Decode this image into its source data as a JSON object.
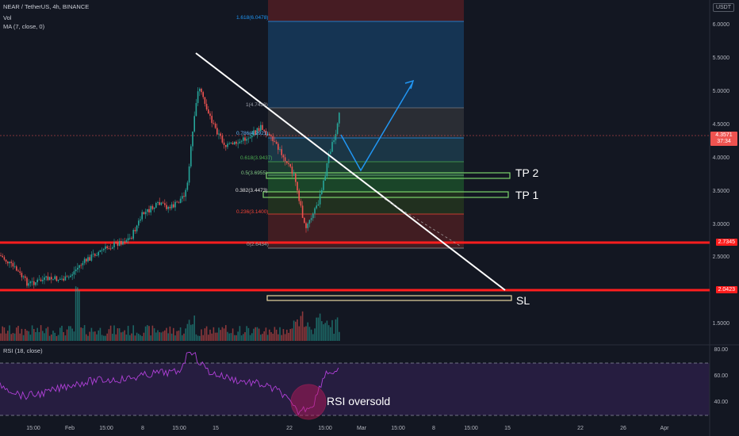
{
  "header": {
    "symbol_line": "NEAR / TetherUS, 4h, BINANCE",
    "vol_label": "Vol",
    "ma_label": "MA (7, close, 0)"
  },
  "currency_label": "USDT",
  "price_axis": [
    "6.0000",
    "5.5000",
    "5.0000",
    "4.5000",
    "4.0000",
    "3.5000",
    "3.0000",
    "2.5000",
    "1.5000"
  ],
  "price_badges": {
    "current": "4.3571",
    "countdown": "37:34",
    "level_upper": "2.7345",
    "level_lower": "2.0423"
  },
  "fib_levels": [
    "1.618(6.0478)",
    "1(4.7433)",
    "0.786(4.2921)",
    "0.618(3.9437)",
    "0.5(3.6955)",
    "0.382(3.4473)",
    "0.236(3.1400)",
    "0(2.6434)"
  ],
  "annotations": {
    "tp2": "TP 2",
    "tp1": "TP 1",
    "sl": "SL",
    "rsi_oversold": "RSI oversold"
  },
  "rsi": {
    "label": "RSI (18, close)",
    "axis": [
      "80.00",
      "60.00",
      "40.00"
    ]
  },
  "time_axis": [
    "15:00",
    "Feb",
    "15:00",
    "8",
    "15:00",
    "15",
    "22",
    "15:00",
    "Mar",
    "15:00",
    "8",
    "15:00",
    "15",
    "22",
    "26",
    "Apr"
  ],
  "colors": {
    "background": "#131722",
    "up": "#26a69a",
    "down": "#ef5350",
    "level_line": "#ff0000",
    "rsi_line": "#9c27b0",
    "trendline": "#ffffff",
    "projection": "#2196f3"
  }
}
